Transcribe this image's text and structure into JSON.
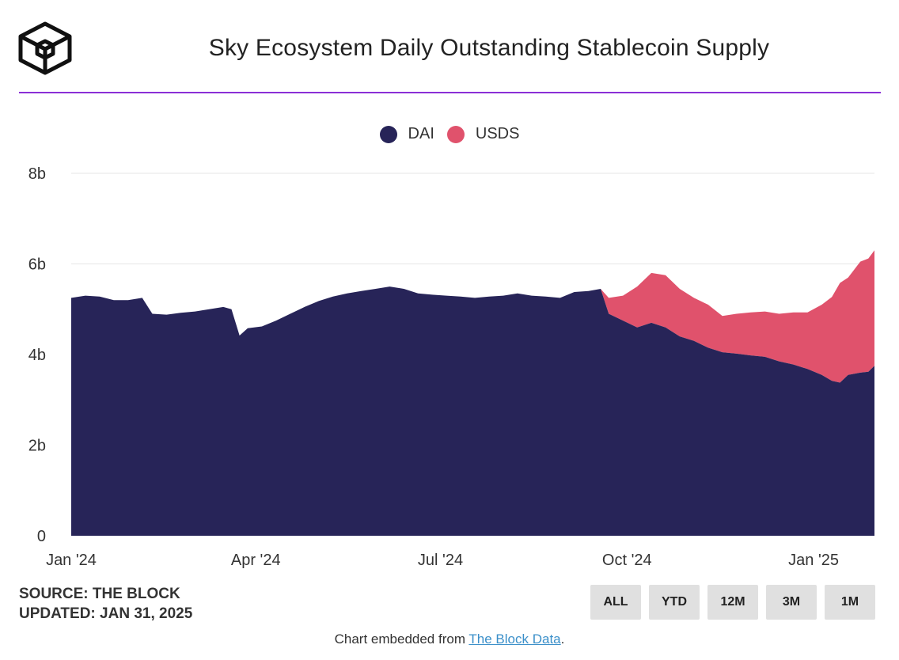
{
  "header": {
    "title": "Sky Ecosystem Daily Outstanding Stablecoin Supply",
    "logo_icon": "the-block-cube-logo-icon"
  },
  "colors": {
    "accent_rule": "#8b2fd6",
    "dai": "#272458",
    "usds": "#e0526c",
    "grid": "#e6e6e6",
    "button_bg": "#e0e0e0",
    "link": "#3a8fc9"
  },
  "legend": {
    "items": [
      {
        "label": "DAI",
        "color": "#272458"
      },
      {
        "label": "USDS",
        "color": "#e0526c"
      }
    ],
    "position": "top-center"
  },
  "chart_data": {
    "type": "area",
    "stacked": true,
    "title": "Sky Ecosystem Daily Outstanding Stablecoin Supply",
    "xlabel": "",
    "ylabel": "",
    "ylim": [
      0,
      8
    ],
    "y_ticks": [
      {
        "value": 0,
        "label": "0"
      },
      {
        "value": 2,
        "label": "2b"
      },
      {
        "value": 4,
        "label": "4b"
      },
      {
        "value": 6,
        "label": "6b"
      },
      {
        "value": 8,
        "label": "8b"
      }
    ],
    "x_ticks": [
      {
        "date": "2024-01-01",
        "label": "Jan '24"
      },
      {
        "date": "2024-04-01",
        "label": "Apr '24"
      },
      {
        "date": "2024-07-01",
        "label": "Jul '24"
      },
      {
        "date": "2024-10-01",
        "label": "Oct '24"
      },
      {
        "date": "2025-01-01",
        "label": "Jan '25"
      }
    ],
    "xlim": [
      "2024-01-01",
      "2025-01-31"
    ],
    "grid": true,
    "series": [
      {
        "name": "DAI",
        "color": "#272458",
        "points": [
          [
            "2024-01-01",
            5.25
          ],
          [
            "2024-01-08",
            5.3
          ],
          [
            "2024-01-15",
            5.28
          ],
          [
            "2024-01-22",
            5.2
          ],
          [
            "2024-01-29",
            5.2
          ],
          [
            "2024-02-05",
            5.25
          ],
          [
            "2024-02-10",
            4.9
          ],
          [
            "2024-02-17",
            4.88
          ],
          [
            "2024-02-24",
            4.92
          ],
          [
            "2024-03-02",
            4.95
          ],
          [
            "2024-03-09",
            5.0
          ],
          [
            "2024-03-16",
            5.05
          ],
          [
            "2024-03-20",
            5.0
          ],
          [
            "2024-03-24",
            4.42
          ],
          [
            "2024-03-28",
            4.58
          ],
          [
            "2024-04-04",
            4.62
          ],
          [
            "2024-04-11",
            4.75
          ],
          [
            "2024-04-18",
            4.9
          ],
          [
            "2024-04-25",
            5.05
          ],
          [
            "2024-05-02",
            5.18
          ],
          [
            "2024-05-09",
            5.28
          ],
          [
            "2024-05-16",
            5.35
          ],
          [
            "2024-05-23",
            5.4
          ],
          [
            "2024-05-30",
            5.45
          ],
          [
            "2024-06-06",
            5.5
          ],
          [
            "2024-06-13",
            5.45
          ],
          [
            "2024-06-20",
            5.35
          ],
          [
            "2024-06-27",
            5.32
          ],
          [
            "2024-07-04",
            5.3
          ],
          [
            "2024-07-11",
            5.28
          ],
          [
            "2024-07-18",
            5.25
          ],
          [
            "2024-07-25",
            5.28
          ],
          [
            "2024-08-01",
            5.3
          ],
          [
            "2024-08-08",
            5.35
          ],
          [
            "2024-08-15",
            5.3
          ],
          [
            "2024-08-22",
            5.28
          ],
          [
            "2024-08-29",
            5.25
          ],
          [
            "2024-09-05",
            5.38
          ],
          [
            "2024-09-12",
            5.4
          ],
          [
            "2024-09-18",
            5.45
          ],
          [
            "2024-09-22",
            4.9
          ],
          [
            "2024-09-29",
            4.75
          ],
          [
            "2024-10-06",
            4.6
          ],
          [
            "2024-10-13",
            4.7
          ],
          [
            "2024-10-20",
            4.6
          ],
          [
            "2024-10-27",
            4.4
          ],
          [
            "2024-11-03",
            4.3
          ],
          [
            "2024-11-10",
            4.15
          ],
          [
            "2024-11-17",
            4.05
          ],
          [
            "2024-11-24",
            4.02
          ],
          [
            "2024-12-01",
            3.98
          ],
          [
            "2024-12-08",
            3.95
          ],
          [
            "2024-12-15",
            3.85
          ],
          [
            "2024-12-22",
            3.78
          ],
          [
            "2024-12-29",
            3.68
          ],
          [
            "2025-01-05",
            3.55
          ],
          [
            "2025-01-10",
            3.42
          ],
          [
            "2025-01-14",
            3.38
          ],
          [
            "2025-01-18",
            3.55
          ],
          [
            "2025-01-24",
            3.6
          ],
          [
            "2025-01-28",
            3.62
          ],
          [
            "2025-01-31",
            3.75
          ]
        ]
      },
      {
        "name": "USDS",
        "color": "#e0526c",
        "points": [
          [
            "2024-09-18",
            0.0
          ],
          [
            "2024-09-22",
            0.35
          ],
          [
            "2024-09-29",
            0.55
          ],
          [
            "2024-10-06",
            0.9
          ],
          [
            "2024-10-13",
            1.1
          ],
          [
            "2024-10-20",
            1.15
          ],
          [
            "2024-10-27",
            1.05
          ],
          [
            "2024-11-03",
            0.95
          ],
          [
            "2024-11-10",
            0.95
          ],
          [
            "2024-11-17",
            0.8
          ],
          [
            "2024-11-24",
            0.88
          ],
          [
            "2024-12-01",
            0.95
          ],
          [
            "2024-12-08",
            1.0
          ],
          [
            "2024-12-15",
            1.05
          ],
          [
            "2024-12-22",
            1.15
          ],
          [
            "2024-12-29",
            1.25
          ],
          [
            "2025-01-05",
            1.55
          ],
          [
            "2025-01-10",
            1.85
          ],
          [
            "2025-01-14",
            2.2
          ],
          [
            "2025-01-18",
            2.15
          ],
          [
            "2025-01-24",
            2.45
          ],
          [
            "2025-01-28",
            2.5
          ],
          [
            "2025-01-31",
            2.55
          ]
        ]
      }
    ]
  },
  "footer": {
    "source_line": "SOURCE: THE BLOCK",
    "updated_line": "UPDATED: JAN 31, 2025",
    "embed_prefix": "Chart embedded from ",
    "embed_link": "The Block Data",
    "embed_suffix": "."
  },
  "range_buttons": [
    "ALL",
    "YTD",
    "12M",
    "3M",
    "1M"
  ]
}
